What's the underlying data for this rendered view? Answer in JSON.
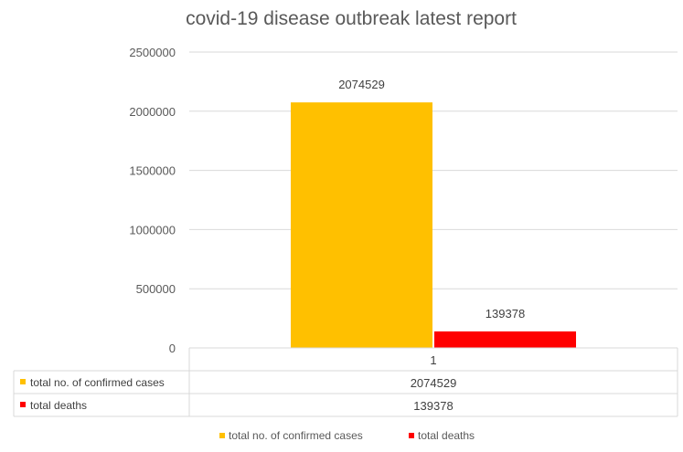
{
  "chart_data": {
    "type": "bar",
    "title": "covid-19 disease outbreak latest report",
    "categories": [
      "1"
    ],
    "series": [
      {
        "name": "total no. of confirmed cases",
        "values": [
          2074529
        ],
        "color": "#FFC000"
      },
      {
        "name": "total deaths",
        "values": [
          139378
        ],
        "color": "#FF0000"
      }
    ],
    "ylim": [
      0,
      2500000
    ],
    "yticks": [
      "0",
      "500000",
      "1000000",
      "1500000",
      "2000000",
      "2500000"
    ],
    "data_labels": [
      "2074529",
      "139378"
    ],
    "data_table": {
      "rows": [
        {
          "label": "total no. of confirmed cases",
          "value": "2074529",
          "color": "#FFC000"
        },
        {
          "label": "total deaths",
          "value": "139378",
          "color": "#FF0000"
        }
      ]
    },
    "grid": true,
    "legend_position": "bottom"
  }
}
